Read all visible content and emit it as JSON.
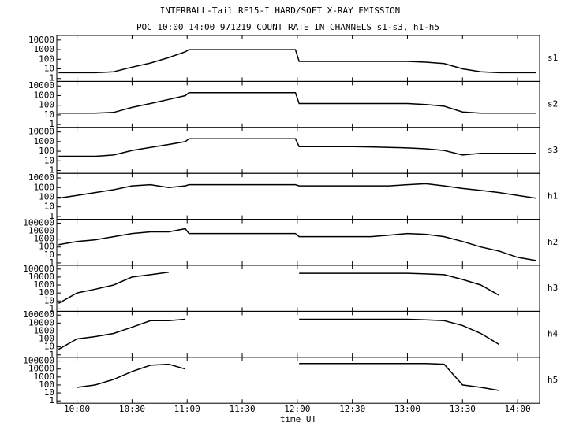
{
  "chart_data": {
    "type": "line",
    "title": "INTERBALL-Tail RF15-I HARD/SOFT X-RAY EMISSION",
    "subtitle": "POC 10:00 14:00 971219  COUNT RATE IN CHANNELS s1-s3, h1-h5",
    "xlabel": "time UT",
    "yscale": "log",
    "x": [
      590,
      600,
      610,
      620,
      630,
      640,
      650,
      659,
      661,
      670,
      680,
      690,
      700,
      710,
      719,
      721,
      730,
      740,
      750,
      760,
      770,
      780,
      790,
      800,
      810,
      820,
      830,
      840,
      850
    ],
    "xlim": [
      589,
      852
    ],
    "xticks": [
      {
        "value": 600,
        "label": "10:00"
      },
      {
        "value": 630,
        "label": "10:30"
      },
      {
        "value": 660,
        "label": "11:00"
      },
      {
        "value": 690,
        "label": "11:30"
      },
      {
        "value": 720,
        "label": "12:00"
      },
      {
        "value": 750,
        "label": "12:30"
      },
      {
        "value": 780,
        "label": "13:00"
      },
      {
        "value": 810,
        "label": "13:30"
      },
      {
        "value": 840,
        "label": "14:00"
      }
    ],
    "series": [
      {
        "name": "s1",
        "color": "#000000",
        "ylim": [
          0.5,
          30000
        ],
        "yticks": [
          1,
          10,
          100,
          1000,
          10000
        ],
        "values": [
          4,
          4,
          4,
          5,
          15,
          40,
          150,
          600,
          1000,
          1000,
          1000,
          1000,
          1000,
          1000,
          1000,
          60,
          60,
          60,
          60,
          60,
          60,
          60,
          50,
          35,
          10,
          5,
          4,
          4,
          4
        ]
      },
      {
        "name": "s2",
        "color": "#000000",
        "ylim": [
          0.5,
          30000
        ],
        "yticks": [
          1,
          10,
          100,
          1000,
          10000
        ],
        "values": [
          15,
          15,
          15,
          18,
          60,
          150,
          400,
          1000,
          2000,
          2000,
          2000,
          2000,
          2000,
          2000,
          2000,
          150,
          150,
          150,
          150,
          150,
          150,
          150,
          120,
          80,
          20,
          15,
          15,
          15,
          15
        ]
      },
      {
        "name": "s3",
        "color": "#000000",
        "ylim": [
          0.5,
          30000
        ],
        "yticks": [
          1,
          10,
          100,
          1000,
          10000
        ],
        "values": [
          30,
          30,
          30,
          40,
          120,
          250,
          500,
          1000,
          2000,
          2000,
          2000,
          2000,
          2000,
          2000,
          2000,
          300,
          300,
          300,
          300,
          280,
          250,
          220,
          180,
          120,
          40,
          60,
          60,
          60,
          60
        ]
      },
      {
        "name": "h1",
        "color": "#000000",
        "ylim": [
          0.5,
          30000
        ],
        "yticks": [
          1,
          10,
          100,
          1000,
          10000
        ],
        "values": [
          80,
          150,
          300,
          600,
          1500,
          2000,
          1000,
          1500,
          2000,
          2000,
          2000,
          2000,
          2000,
          2000,
          2000,
          1500,
          1500,
          1500,
          1500,
          1500,
          1500,
          2000,
          2500,
          1500,
          800,
          500,
          300,
          150,
          80
        ]
      },
      {
        "name": "h2",
        "color": "#000000",
        "ylim": [
          0.5,
          300000
        ],
        "yticks": [
          1,
          10,
          100,
          1000,
          10000,
          100000
        ],
        "values": [
          200,
          500,
          800,
          2000,
          5000,
          8000,
          8000,
          20000,
          5000,
          5000,
          5000,
          5000,
          5000,
          5000,
          5000,
          2000,
          2000,
          2000,
          2000,
          2000,
          3000,
          5000,
          4000,
          2000,
          500,
          100,
          30,
          5,
          2
        ]
      },
      {
        "name": "h3",
        "color": "#000000",
        "ylim": [
          0.5,
          300000
        ],
        "yticks": [
          1,
          10,
          100,
          1000,
          10000,
          100000
        ],
        "values": [
          5,
          100,
          300,
          1000,
          10000,
          20000,
          40000,
          null,
          null,
          null,
          null,
          null,
          null,
          null,
          null,
          30000,
          30000,
          30000,
          30000,
          30000,
          30000,
          30000,
          25000,
          20000,
          5000,
          1000,
          50,
          null,
          null
        ]
      },
      {
        "name": "h4",
        "color": "#000000",
        "ylim": [
          0.5,
          300000
        ],
        "yticks": [
          1,
          10,
          100,
          1000,
          10000,
          100000
        ],
        "values": [
          5,
          100,
          200,
          500,
          3000,
          20000,
          20000,
          30000,
          null,
          null,
          null,
          null,
          null,
          null,
          null,
          30000,
          30000,
          30000,
          30000,
          30000,
          30000,
          30000,
          25000,
          20000,
          5000,
          500,
          20,
          null,
          null
        ]
      },
      {
        "name": "h5",
        "color": "#000000",
        "ylim": [
          0.5,
          300000
        ],
        "yticks": [
          1,
          10,
          100,
          1000,
          10000,
          100000
        ],
        "values": [
          null,
          50,
          100,
          500,
          5000,
          30000,
          40000,
          10000,
          null,
          null,
          null,
          null,
          null,
          null,
          null,
          50000,
          50000,
          50000,
          50000,
          50000,
          50000,
          50000,
          50000,
          40000,
          100,
          50,
          20,
          null,
          null
        ]
      }
    ]
  }
}
